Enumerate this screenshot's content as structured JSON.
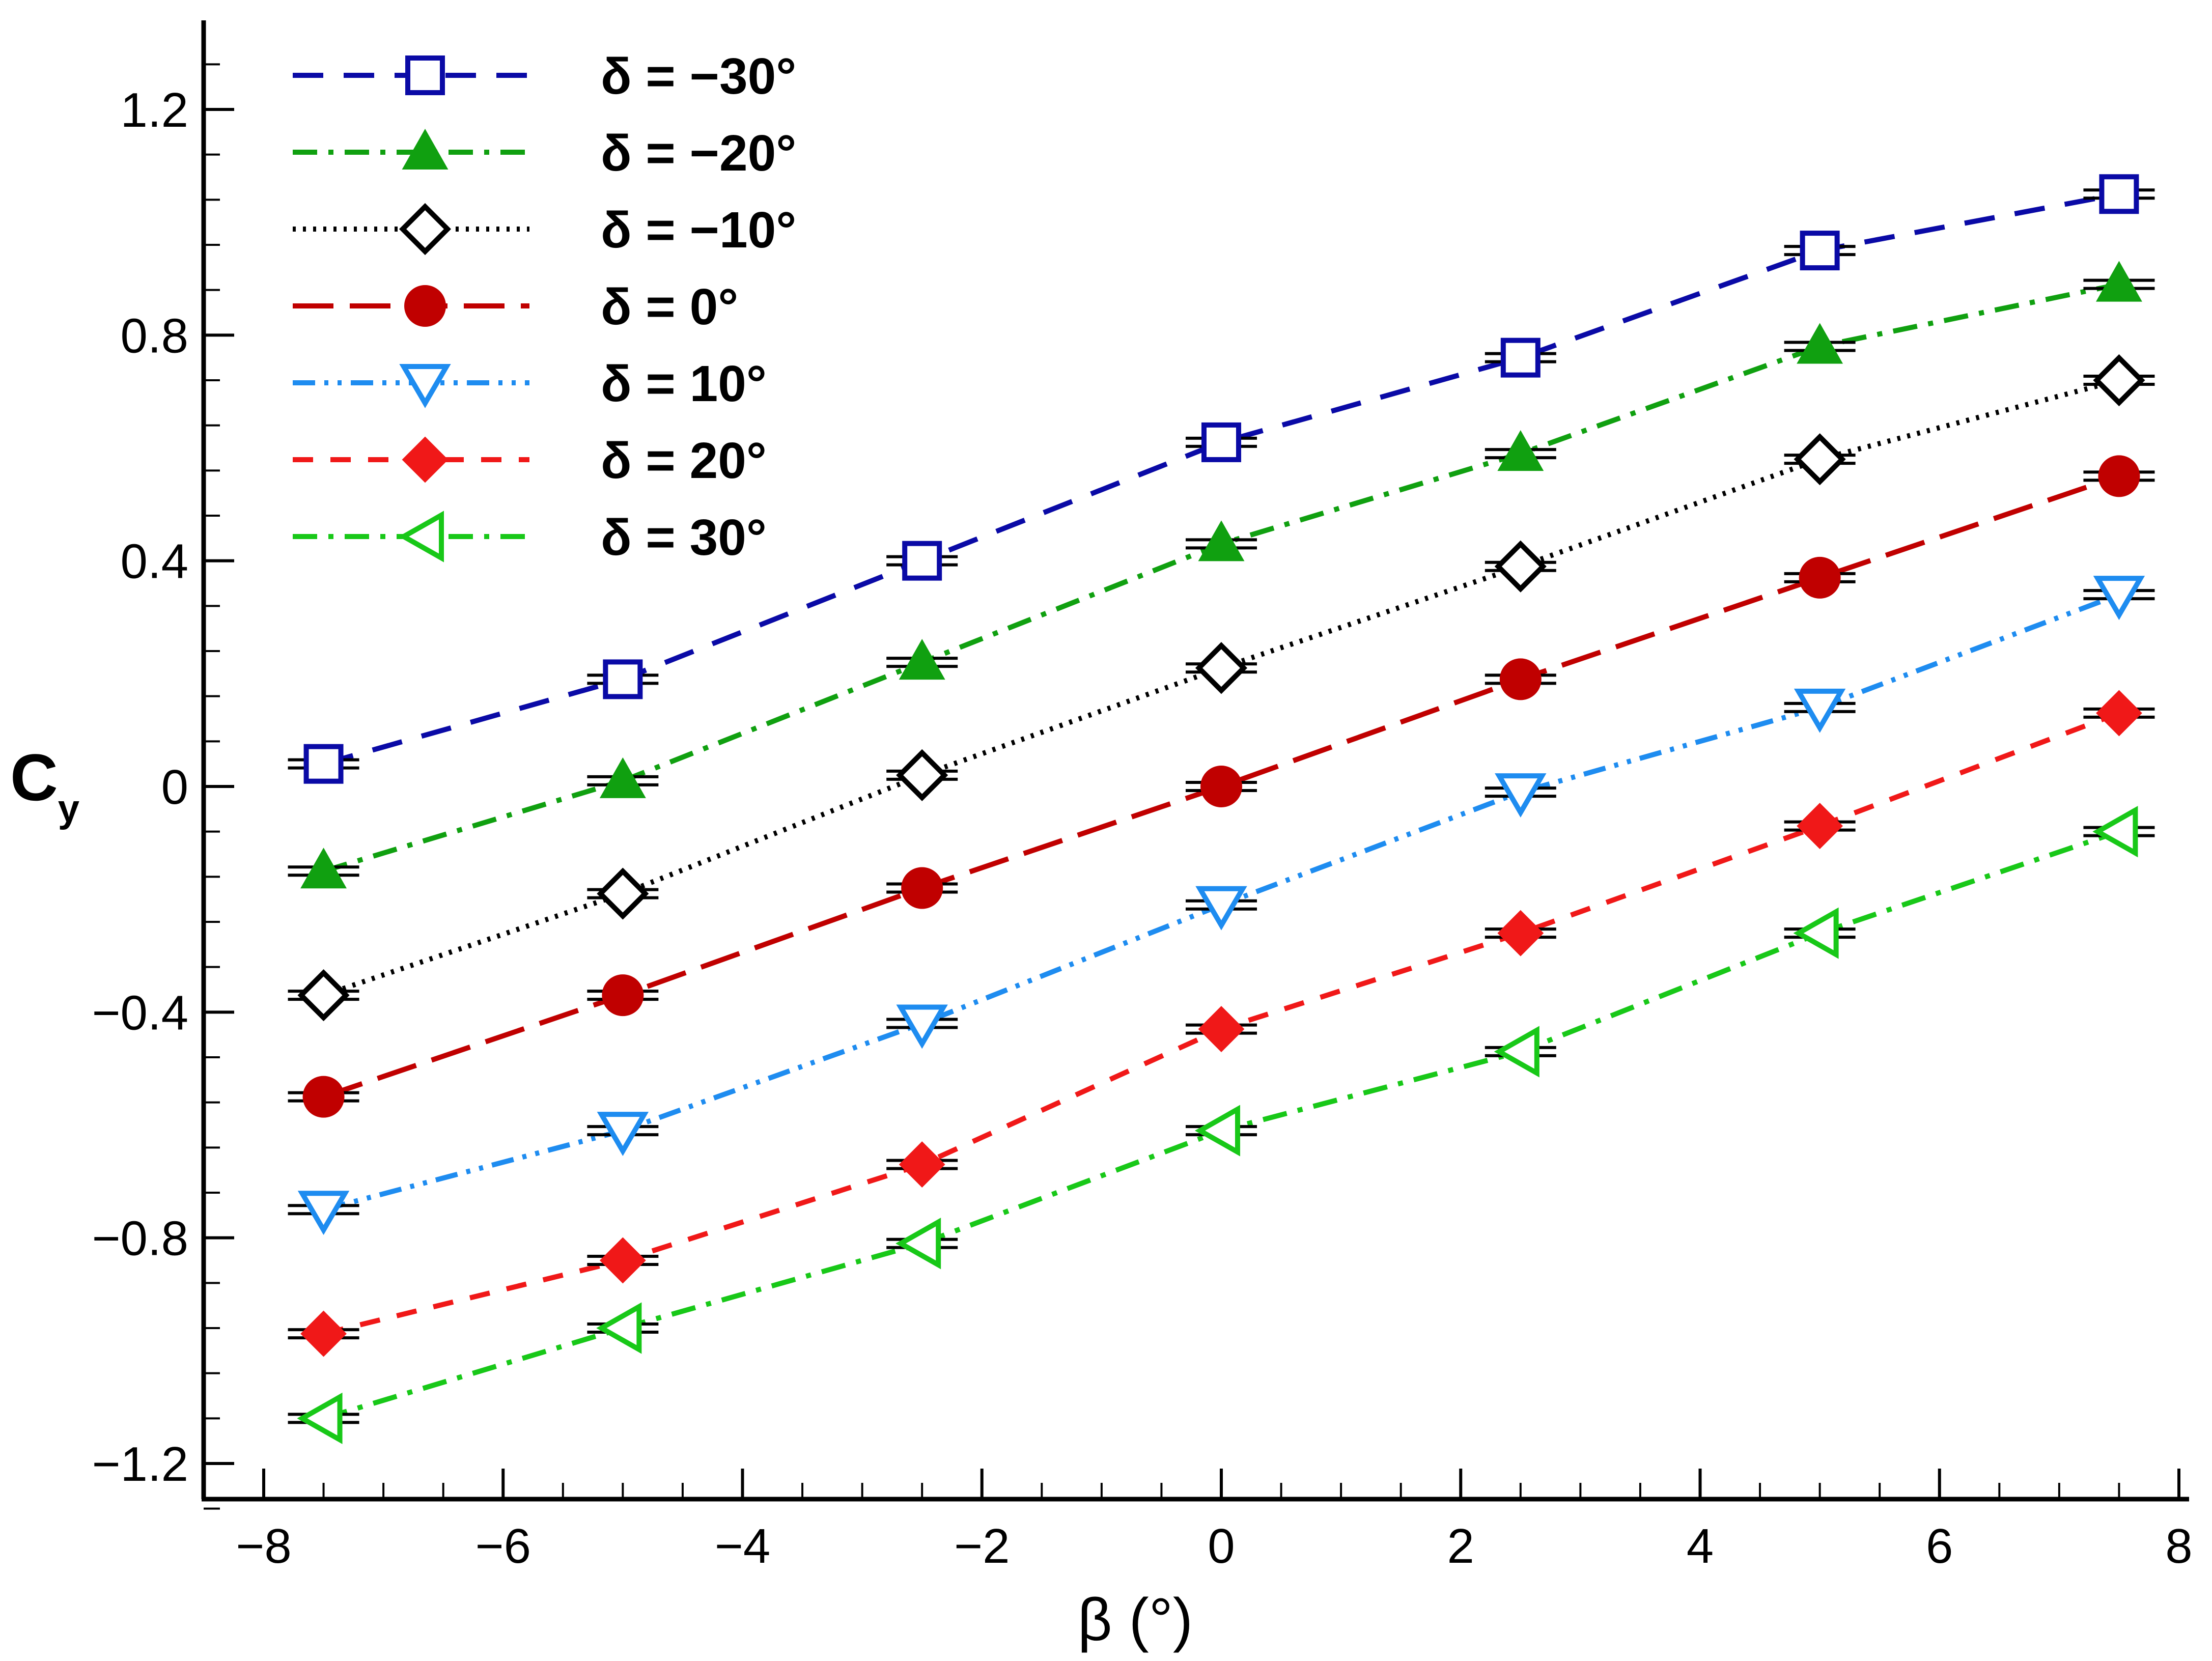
{
  "chart_data": {
    "type": "line",
    "title": "",
    "xlabel": "β (°)",
    "ylabel": {
      "main": "C",
      "sub": "y"
    },
    "xlim": [
      -8.5,
      8
    ],
    "ylim": [
      -1.28,
      1.35
    ],
    "xticks": [
      -8,
      -6,
      -4,
      -2,
      0,
      2,
      4,
      6,
      8
    ],
    "xtick_labels": [
      "−8",
      "−6",
      "−4",
      "−2",
      "0",
      "2",
      "4",
      "6",
      "8"
    ],
    "yticks": [
      -1.2,
      -0.8,
      -0.4,
      0,
      0.4,
      0.8,
      1.2
    ],
    "ytick_labels": [
      "−1.2",
      "−0.8",
      "−0.4",
      "0",
      "0.4",
      "0.8",
      "1.2"
    ],
    "grid": false,
    "legend_position": "top-left",
    "x": [
      -7.5,
      -5,
      -2.5,
      0,
      2.5,
      5,
      7.5
    ],
    "series": [
      {
        "name": "δ = −30°",
        "color": "#0a0aa6",
        "marker": "square-open",
        "dash": "dash",
        "values": [
          0.04,
          0.19,
          0.4,
          0.61,
          0.76,
          0.95,
          1.05
        ]
      },
      {
        "name": "δ = −20°",
        "color": "#10a010",
        "marker": "triangle-up-filled",
        "dash": "dashdot",
        "values": [
          -0.15,
          0.01,
          0.22,
          0.43,
          0.59,
          0.78,
          0.89
        ]
      },
      {
        "name": "δ = −10°",
        "color": "#000000",
        "marker": "diamond-open",
        "dash": "dot",
        "values": [
          -0.37,
          -0.19,
          0.02,
          0.21,
          0.39,
          0.58,
          0.72
        ]
      },
      {
        "name": "δ = 0°",
        "color": "#c00000",
        "marker": "circle-filled",
        "dash": "longdash",
        "values": [
          -0.55,
          -0.37,
          -0.18,
          0.0,
          0.19,
          0.37,
          0.55
        ]
      },
      {
        "name": "δ = 10°",
        "color": "#1e8cf0",
        "marker": "triangle-down-open",
        "dash": "dashdotdot",
        "values": [
          -0.75,
          -0.61,
          -0.42,
          -0.21,
          -0.01,
          0.14,
          0.34
        ]
      },
      {
        "name": "δ = 20°",
        "color": "#f01818",
        "marker": "diamond-filled",
        "dash": "shortdash",
        "values": [
          -0.97,
          -0.84,
          -0.67,
          -0.43,
          -0.26,
          -0.07,
          0.13
        ]
      },
      {
        "name": "δ = 30°",
        "color": "#18c818",
        "marker": "triangle-left-open",
        "dash": "dashdot",
        "values": [
          -1.12,
          -0.96,
          -0.81,
          -0.61,
          -0.47,
          -0.26,
          -0.08
        ]
      }
    ]
  }
}
